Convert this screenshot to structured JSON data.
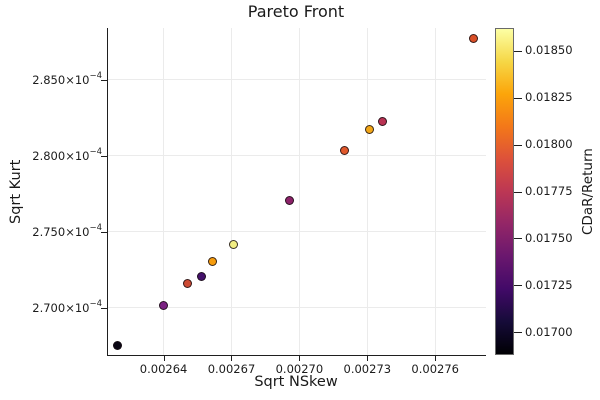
{
  "chart_data": {
    "type": "scatter",
    "title": "Pareto Front",
    "xlabel": "Sqrt NSkew",
    "ylabel": "Sqrt Kurt",
    "grid": true,
    "legend": "none",
    "xlim": [
      0.002615,
      0.002782
    ],
    "ylim": [
      0.0002669,
      0.0002884
    ],
    "xticks": [
      {
        "value": 0.00264,
        "label": "0.00264"
      },
      {
        "value": 0.00267,
        "label": "0.00267"
      },
      {
        "value": 0.0027,
        "label": "0.00270"
      },
      {
        "value": 0.00273,
        "label": "0.00273"
      },
      {
        "value": 0.00276,
        "label": "0.00276"
      }
    ],
    "yticks": [
      {
        "value": 0.000285,
        "base": "2.850×10",
        "exp": "−4"
      },
      {
        "value": 0.00028,
        "base": "2.800×10",
        "exp": "−4"
      },
      {
        "value": 0.000275,
        "base": "2.750×10",
        "exp": "−4"
      },
      {
        "value": 0.00027,
        "base": "2.700×10",
        "exp": "−4"
      }
    ],
    "colorbar": {
      "label": "CDaR/Return",
      "colormap": "inferno",
      "min": 0.01688,
      "max": 0.01862,
      "ticks": [
        {
          "value": 0.0185,
          "label": "0.01850"
        },
        {
          "value": 0.01825,
          "label": "0.01825"
        },
        {
          "value": 0.018,
          "label": "0.01800"
        },
        {
          "value": 0.01775,
          "label": "0.01775"
        },
        {
          "value": 0.0175,
          "label": "0.01750"
        },
        {
          "value": 0.01725,
          "label": "0.01725"
        },
        {
          "value": 0.017,
          "label": "0.01700"
        }
      ]
    },
    "points": [
      {
        "x": 0.00262,
        "y": 0.0002675,
        "c": 0.0169,
        "color": "#0a0614"
      },
      {
        "x": 0.00264,
        "y": 0.0002701,
        "c": 0.01751,
        "color": "#7b2182"
      },
      {
        "x": 0.002651,
        "y": 0.0002716,
        "c": 0.01791,
        "color": "#cc4a33"
      },
      {
        "x": 0.002657,
        "y": 0.000272,
        "c": 0.01727,
        "color": "#44116b"
      },
      {
        "x": 0.002662,
        "y": 0.000273,
        "c": 0.0182,
        "color": "#f69c0d"
      },
      {
        "x": 0.002671,
        "y": 0.0002741,
        "c": 0.01854,
        "color": "#f2ee83"
      },
      {
        "x": 0.002696,
        "y": 0.000277,
        "c": 0.01762,
        "color": "#8c2269"
      },
      {
        "x": 0.00272,
        "y": 0.0002803,
        "c": 0.01803,
        "color": "#e0582b"
      },
      {
        "x": 0.002731,
        "y": 0.0002817,
        "c": 0.01827,
        "color": "#f2a617"
      },
      {
        "x": 0.002737,
        "y": 0.0002822,
        "c": 0.01774,
        "color": "#b93253"
      },
      {
        "x": 0.002777,
        "y": 0.0002877,
        "c": 0.01799,
        "color": "#d94f27"
      }
    ]
  }
}
